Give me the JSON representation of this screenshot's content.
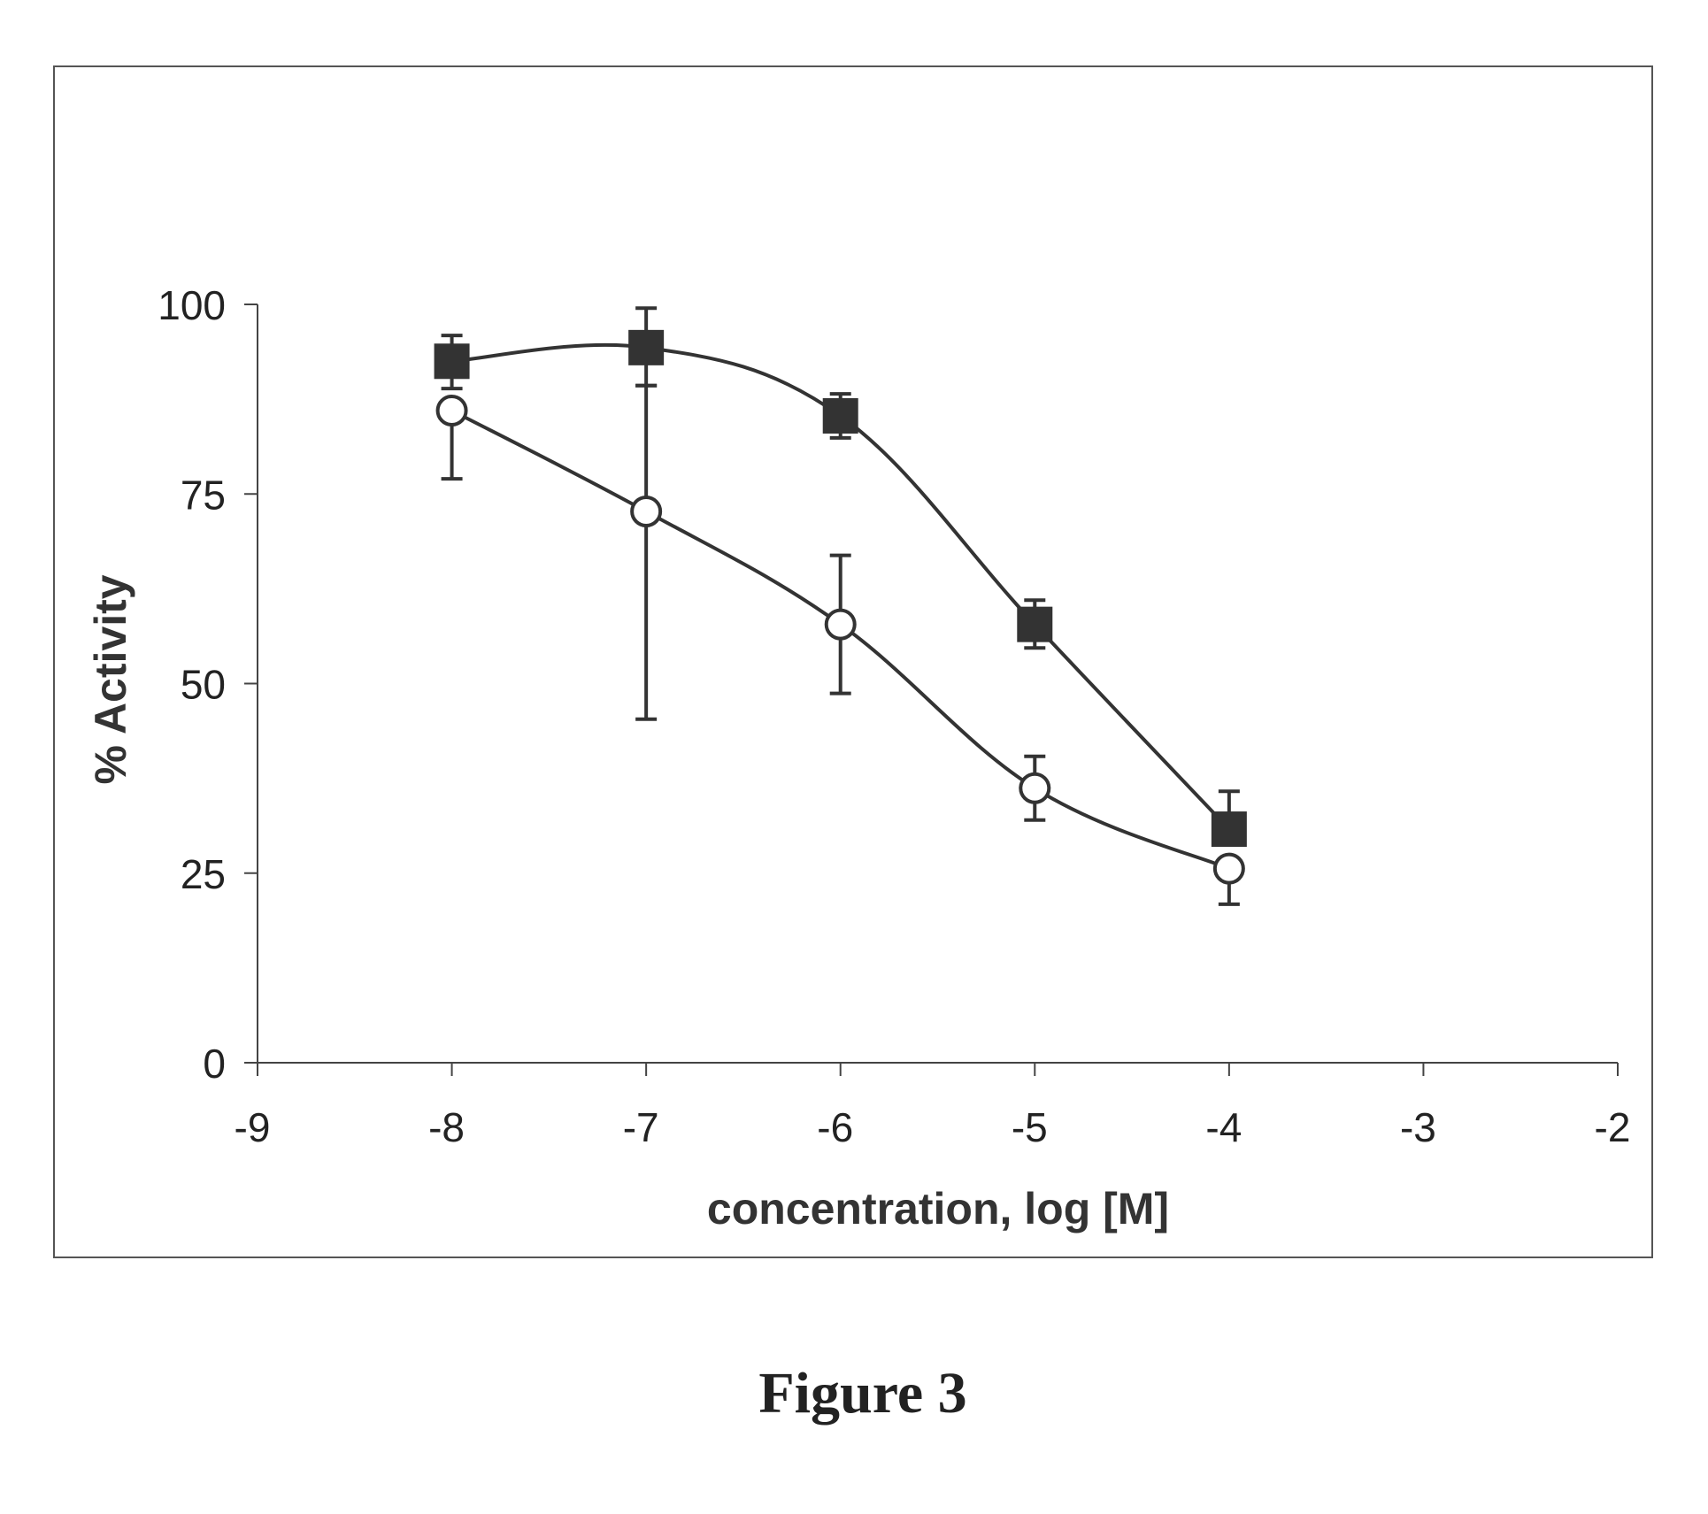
{
  "chart_data": {
    "type": "line",
    "title": "",
    "caption": "Figure 3",
    "xlabel": "concentration, log [M]",
    "ylabel": "% Activity",
    "xlim": [
      -9,
      -2
    ],
    "ylim": [
      0,
      100
    ],
    "x_ticks": [
      -9,
      -8,
      -7,
      -6,
      -5,
      -4,
      -3,
      -2
    ],
    "x_tick_labels": [
      "-9",
      "-8",
      "-7",
      "-6",
      "-5",
      "-4",
      "-3",
      "-2"
    ],
    "y_ticks": [
      0,
      25,
      50,
      75,
      100
    ],
    "y_tick_labels": [
      "0",
      "25",
      "50",
      "75",
      "100"
    ],
    "grid": false,
    "legend": "none",
    "series": [
      {
        "name": "filled squares",
        "marker": "square-filled",
        "curve": "smooth",
        "x": [
          -8,
          -7,
          -6,
          -5,
          -4
        ],
        "y": [
          92.5,
          94.3,
          85.3,
          57.8,
          30.8
        ],
        "err_low": [
          88.9,
          89.3,
          82.4,
          54.7,
          30.8
        ],
        "err_high": [
          95.9,
          99.5,
          88.2,
          61.0,
          35.8
        ],
        "color": "#333333"
      },
      {
        "name": "open circles",
        "marker": "circle-open",
        "curve": "smooth",
        "x": [
          -8,
          -7,
          -6,
          -5,
          -4
        ],
        "y": [
          86.0,
          72.7,
          57.8,
          36.2,
          25.6
        ],
        "err_low": [
          77.0,
          45.3,
          48.7,
          32.0,
          20.9
        ],
        "err_high": [
          86.0,
          89.3,
          66.9,
          40.4,
          25.6
        ],
        "color": "#333333"
      }
    ]
  }
}
